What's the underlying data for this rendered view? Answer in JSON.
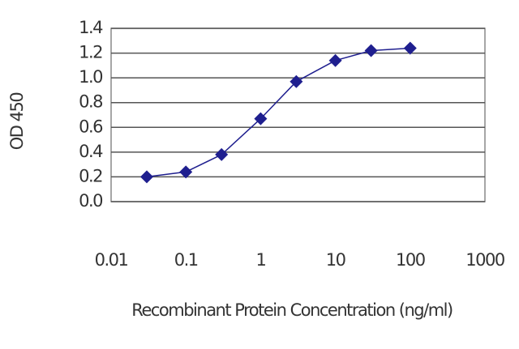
{
  "chart_data": {
    "type": "scatter",
    "xlabel": "Recombinant Protein Concentration (ng/ml)",
    "ylabel": "OD 450",
    "x": [
      0.03,
      0.1,
      0.3,
      1,
      3,
      10,
      30,
      100
    ],
    "series": [
      {
        "color": "#1f1f8f",
        "values": [
          0.2,
          0.24,
          0.38,
          0.67,
          0.97,
          1.14,
          1.22,
          1.24
        ]
      }
    ],
    "xlim": [
      0.01,
      1000
    ],
    "xticks": [
      0.01,
      0.1,
      1,
      10,
      100,
      1000
    ],
    "xscale": "log",
    "ylim": [
      0,
      1.4
    ],
    "yticks": [
      {
        "value": 0,
        "label": "0.0"
      },
      0.2,
      0.4,
      0.6,
      0.8,
      {
        "value": 1,
        "label": "1.0"
      },
      1.2,
      1.4
    ],
    "grid": true
  }
}
